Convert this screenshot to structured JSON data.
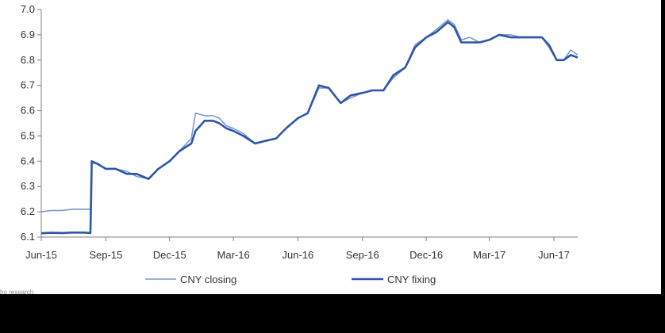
{
  "chart_data": {
    "type": "line",
    "title": "",
    "xlabel": "",
    "ylabel": "",
    "ylim": [
      6.1,
      7.0
    ],
    "yticks": [
      "6.1",
      "6.2",
      "6.3",
      "6.4",
      "6.5",
      "6.6",
      "6.7",
      "6.8",
      "6.9",
      "7.0"
    ],
    "xlim": [
      "2015-06-01",
      "2017-07-05"
    ],
    "xticks": [
      {
        "label": "Jun-15",
        "date": "2015-06-01"
      },
      {
        "label": "Sep-15",
        "date": "2015-09-01"
      },
      {
        "label": "Dec-15",
        "date": "2015-12-01"
      },
      {
        "label": "Mar-16",
        "date": "2016-03-01"
      },
      {
        "label": "Jun-16",
        "date": "2016-06-01"
      },
      {
        "label": "Sep-16",
        "date": "2016-09-01"
      },
      {
        "label": "Dec-16",
        "date": "2016-12-01"
      },
      {
        "label": "Mar-17",
        "date": "2017-03-01"
      },
      {
        "label": "Jun-17",
        "date": "2017-06-01"
      }
    ],
    "grid": false,
    "legend_position": "bottom",
    "series": [
      {
        "name": "CNY closing",
        "color": "#7a9ad0",
        "points": [
          [
            "2015-06-01",
            6.2
          ],
          [
            "2015-06-15",
            6.205
          ],
          [
            "2015-07-01",
            6.205
          ],
          [
            "2015-07-15",
            6.21
          ],
          [
            "2015-08-01",
            6.21
          ],
          [
            "2015-08-10",
            6.21
          ],
          [
            "2015-08-11",
            6.33
          ],
          [
            "2015-08-12",
            6.39
          ],
          [
            "2015-08-20",
            6.39
          ],
          [
            "2015-09-01",
            6.37
          ],
          [
            "2015-09-15",
            6.37
          ],
          [
            "2015-10-01",
            6.36
          ],
          [
            "2015-10-15",
            6.34
          ],
          [
            "2015-11-01",
            6.33
          ],
          [
            "2015-11-15",
            6.37
          ],
          [
            "2015-12-01",
            6.4
          ],
          [
            "2015-12-15",
            6.44
          ],
          [
            "2016-01-01",
            6.49
          ],
          [
            "2016-01-07",
            6.59
          ],
          [
            "2016-01-20",
            6.58
          ],
          [
            "2016-02-01",
            6.58
          ],
          [
            "2016-02-10",
            6.57
          ],
          [
            "2016-02-20",
            6.54
          ],
          [
            "2016-03-01",
            6.53
          ],
          [
            "2016-03-15",
            6.51
          ],
          [
            "2016-04-01",
            6.47
          ],
          [
            "2016-04-15",
            6.48
          ],
          [
            "2016-05-01",
            6.49
          ],
          [
            "2016-05-15",
            6.53
          ],
          [
            "2016-06-01",
            6.57
          ],
          [
            "2016-06-15",
            6.59
          ],
          [
            "2016-07-01",
            6.69
          ],
          [
            "2016-07-15",
            6.69
          ],
          [
            "2016-08-01",
            6.63
          ],
          [
            "2016-08-15",
            6.65
          ],
          [
            "2016-09-01",
            6.67
          ],
          [
            "2016-09-15",
            6.68
          ],
          [
            "2016-10-01",
            6.68
          ],
          [
            "2016-10-15",
            6.73
          ],
          [
            "2016-11-01",
            6.77
          ],
          [
            "2016-11-15",
            6.86
          ],
          [
            "2016-12-01",
            6.89
          ],
          [
            "2016-12-15",
            6.92
          ],
          [
            "2017-01-01",
            6.96
          ],
          [
            "2017-01-10",
            6.94
          ],
          [
            "2017-01-20",
            6.88
          ],
          [
            "2017-02-01",
            6.89
          ],
          [
            "2017-02-15",
            6.87
          ],
          [
            "2017-03-01",
            6.88
          ],
          [
            "2017-03-15",
            6.9
          ],
          [
            "2017-04-01",
            6.9
          ],
          [
            "2017-04-15",
            6.89
          ],
          [
            "2017-05-01",
            6.89
          ],
          [
            "2017-05-15",
            6.89
          ],
          [
            "2017-05-25",
            6.85
          ],
          [
            "2017-06-05",
            6.8
          ],
          [
            "2017-06-15",
            6.8
          ],
          [
            "2017-06-25",
            6.84
          ],
          [
            "2017-07-05",
            6.82
          ]
        ]
      },
      {
        "name": "CNY fixing",
        "color": "#2e56a6",
        "points": [
          [
            "2015-06-01",
            6.115
          ],
          [
            "2015-06-15",
            6.117
          ],
          [
            "2015-07-01",
            6.116
          ],
          [
            "2015-07-15",
            6.118
          ],
          [
            "2015-08-01",
            6.118
          ],
          [
            "2015-08-10",
            6.116
          ],
          [
            "2015-08-11",
            6.23
          ],
          [
            "2015-08-12",
            6.4
          ],
          [
            "2015-08-20",
            6.39
          ],
          [
            "2015-09-01",
            6.37
          ],
          [
            "2015-09-15",
            6.37
          ],
          [
            "2015-10-01",
            6.35
          ],
          [
            "2015-10-15",
            6.35
          ],
          [
            "2015-11-01",
            6.33
          ],
          [
            "2015-11-15",
            6.37
          ],
          [
            "2015-12-01",
            6.4
          ],
          [
            "2015-12-15",
            6.44
          ],
          [
            "2016-01-01",
            6.47
          ],
          [
            "2016-01-07",
            6.52
          ],
          [
            "2016-01-20",
            6.56
          ],
          [
            "2016-02-01",
            6.56
          ],
          [
            "2016-02-10",
            6.55
          ],
          [
            "2016-02-20",
            6.53
          ],
          [
            "2016-03-01",
            6.52
          ],
          [
            "2016-03-15",
            6.5
          ],
          [
            "2016-04-01",
            6.47
          ],
          [
            "2016-04-15",
            6.48
          ],
          [
            "2016-05-01",
            6.49
          ],
          [
            "2016-05-15",
            6.53
          ],
          [
            "2016-06-01",
            6.57
          ],
          [
            "2016-06-15",
            6.59
          ],
          [
            "2016-07-01",
            6.7
          ],
          [
            "2016-07-15",
            6.69
          ],
          [
            "2016-08-01",
            6.63
          ],
          [
            "2016-08-15",
            6.66
          ],
          [
            "2016-09-01",
            6.67
          ],
          [
            "2016-09-15",
            6.68
          ],
          [
            "2016-10-01",
            6.68
          ],
          [
            "2016-10-15",
            6.74
          ],
          [
            "2016-11-01",
            6.77
          ],
          [
            "2016-11-15",
            6.85
          ],
          [
            "2016-12-01",
            6.89
          ],
          [
            "2016-12-15",
            6.91
          ],
          [
            "2017-01-01",
            6.95
          ],
          [
            "2017-01-10",
            6.93
          ],
          [
            "2017-01-20",
            6.87
          ],
          [
            "2017-02-01",
            6.87
          ],
          [
            "2017-02-15",
            6.87
          ],
          [
            "2017-03-01",
            6.88
          ],
          [
            "2017-03-15",
            6.9
          ],
          [
            "2017-04-01",
            6.89
          ],
          [
            "2017-04-15",
            6.89
          ],
          [
            "2017-05-01",
            6.89
          ],
          [
            "2017-05-15",
            6.89
          ],
          [
            "2017-05-25",
            6.86
          ],
          [
            "2017-06-05",
            6.8
          ],
          [
            "2017-06-15",
            6.8
          ],
          [
            "2017-06-25",
            6.82
          ],
          [
            "2017-07-05",
            6.81
          ]
        ]
      }
    ]
  },
  "source_text": "ho research"
}
